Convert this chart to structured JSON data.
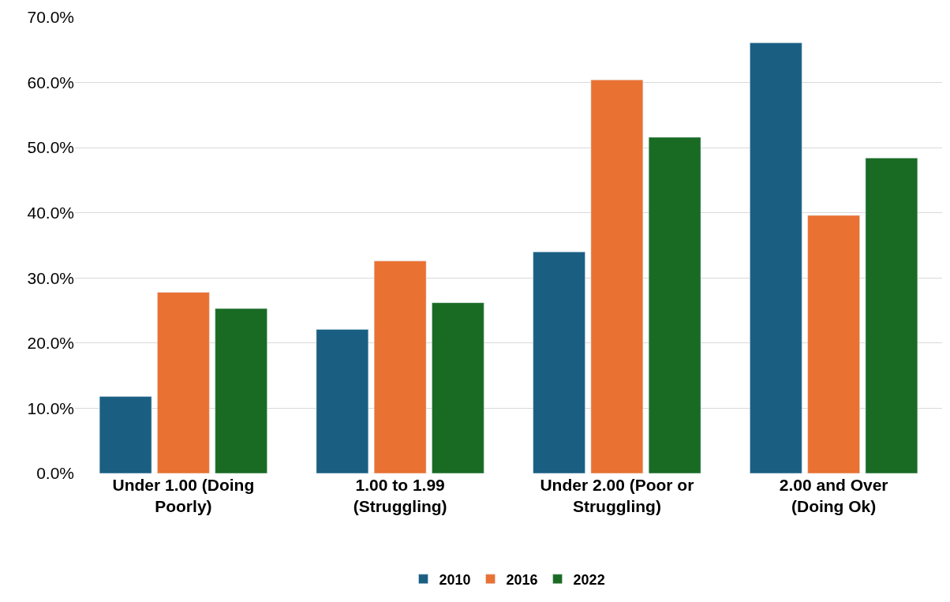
{
  "chart_data": {
    "type": "bar",
    "categories": [
      "Under 1.00 (Doing Poorly)",
      "1.00 to 1.99 (Struggling)",
      "Under 2.00 (Poor or Struggling)",
      "2.00 and Over (Doing Ok)"
    ],
    "series": [
      {
        "name": "2010",
        "color": "#1a5f82",
        "values": [
          11.8,
          22.1,
          34.0,
          66.1
        ]
      },
      {
        "name": "2016",
        "color": "#e97132",
        "values": [
          27.8,
          32.6,
          60.4,
          39.6
        ]
      },
      {
        "name": "2022",
        "color": "#196b24",
        "values": [
          25.3,
          26.2,
          51.6,
          48.4
        ]
      }
    ],
    "ylim": [
      0,
      70
    ],
    "yticks": [
      {
        "value": 0,
        "label": "0.0%"
      },
      {
        "value": 10,
        "label": "10.0%"
      },
      {
        "value": 20,
        "label": "20.0%"
      },
      {
        "value": 30,
        "label": "30.0%"
      },
      {
        "value": 40,
        "label": "40.0%"
      },
      {
        "value": 50,
        "label": "50.0%"
      },
      {
        "value": 60,
        "label": "60.0%"
      },
      {
        "value": 70,
        "label": "70.0%"
      }
    ],
    "grid": "y",
    "legend": "bottom"
  }
}
